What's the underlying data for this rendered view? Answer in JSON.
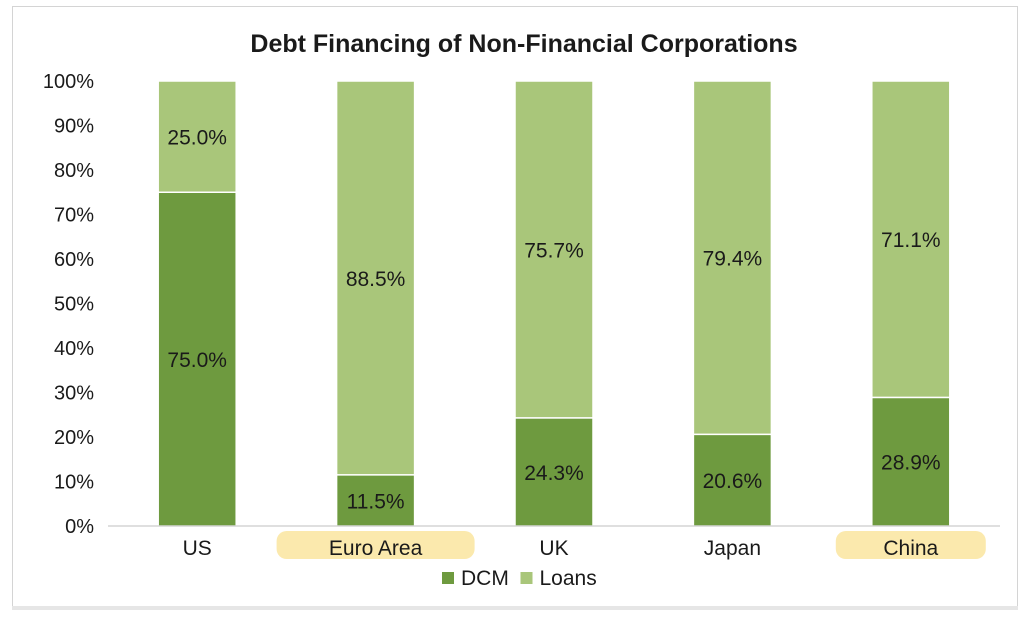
{
  "chart_data": {
    "type": "bar",
    "stacked": true,
    "title": "Debt Financing of Non-Financial Corporations",
    "xlabel": "",
    "ylabel": "",
    "categories": [
      "US",
      "Euro Area",
      "UK",
      "Japan",
      "China"
    ],
    "series": [
      {
        "name": "DCM",
        "values": [
          75.0,
          11.5,
          24.3,
          20.6,
          28.9
        ],
        "labels": [
          "75.0%",
          "11.5%",
          "24.3%",
          "20.6%",
          "28.9%"
        ],
        "color": "#6e9a3f"
      },
      {
        "name": "Loans",
        "values": [
          25.0,
          88.5,
          75.7,
          79.4,
          71.1
        ],
        "labels": [
          "25.0%",
          "88.5%",
          "75.7%",
          "79.4%",
          "71.1%"
        ],
        "color": "#a9c67a"
      }
    ],
    "ylim": [
      0,
      100
    ],
    "yticks": [
      "0%",
      "10%",
      "20%",
      "30%",
      "40%",
      "50%",
      "60%",
      "70%",
      "80%",
      "90%",
      "100%"
    ],
    "grid": false,
    "legend": "bottom",
    "highlighted_categories": [
      "Euro Area",
      "China"
    ],
    "highlight_color": "#fbe7a4"
  }
}
